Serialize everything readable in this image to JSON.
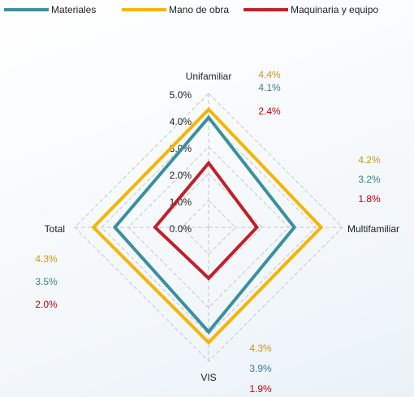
{
  "chart_data": {
    "type": "radar",
    "categories": [
      "Unifamiliar",
      "Multifamiliar",
      "VIS",
      "Total"
    ],
    "series": [
      {
        "name": "Materiales",
        "color": "#3a8fa0",
        "label_color": "#3a7f8f",
        "values": [
          4.1,
          3.2,
          3.9,
          3.5
        ],
        "value_labels": [
          "4.1%",
          "3.2%",
          "3.9%",
          "3.5%"
        ]
      },
      {
        "name": "Mano de obra",
        "color": "#f5b400",
        "label_color": "#c9961a",
        "values": [
          4.4,
          4.2,
          4.3,
          4.3
        ],
        "value_labels": [
          "4.4%",
          "4.2%",
          "4.3%",
          "4.3%"
        ]
      },
      {
        "name": "Maquinaria y equipo",
        "color": "#c0202a",
        "label_color": "#c0000e",
        "values": [
          2.4,
          1.8,
          1.9,
          2.0
        ],
        "value_labels": [
          "2.4%",
          "1.8%",
          "1.9%",
          "2.0%"
        ]
      }
    ],
    "ylim": [
      0,
      5
    ],
    "yticks": [
      {
        "value": 0,
        "label": "0.0%"
      },
      {
        "value": 1,
        "label": "1.0%"
      },
      {
        "value": 2,
        "label": "2.0%"
      },
      {
        "value": 3,
        "label": "3.0%"
      },
      {
        "value": 4,
        "label": "4.0%"
      },
      {
        "value": 5,
        "label": "5.0%"
      }
    ],
    "grid": true,
    "legend": "top"
  }
}
